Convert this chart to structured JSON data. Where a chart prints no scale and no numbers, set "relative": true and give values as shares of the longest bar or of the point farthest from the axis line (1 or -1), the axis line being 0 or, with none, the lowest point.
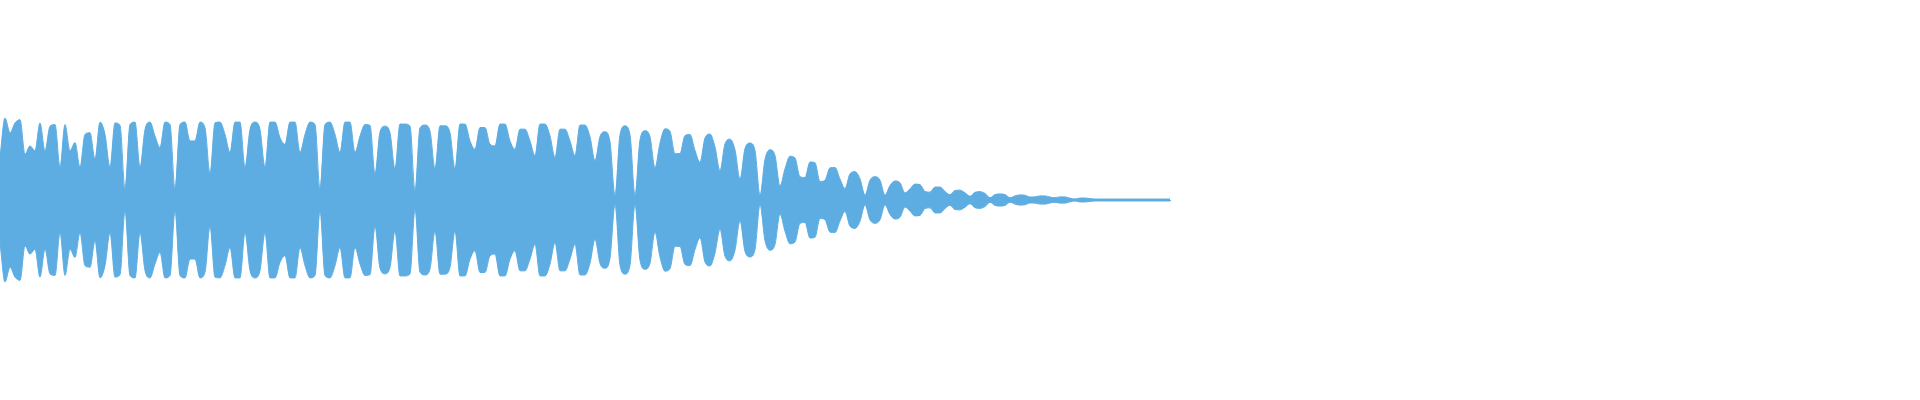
{
  "chart_data": {
    "type": "area",
    "relative": true,
    "categories": [
      null,
      null,
      null,
      null,
      null,
      null,
      null,
      null,
      null,
      null,
      null,
      null,
      null,
      null,
      null,
      null,
      null,
      null,
      null,
      null,
      null,
      null,
      null,
      null,
      null,
      null,
      null,
      null,
      null,
      null,
      null,
      null,
      null,
      null,
      null,
      null,
      null,
      null,
      null,
      null,
      null,
      null,
      null,
      null,
      null,
      null,
      null,
      null,
      null,
      null,
      null,
      null,
      null,
      null,
      null,
      null,
      null,
      null,
      null,
      null,
      null,
      null,
      null,
      null,
      null,
      null,
      null,
      null,
      null,
      null,
      null,
      null,
      null,
      null,
      null,
      null,
      null,
      null,
      null,
      null,
      null,
      null,
      null,
      null,
      null,
      null,
      null,
      null,
      null,
      null,
      null,
      null,
      null,
      null,
      null,
      null,
      null,
      null,
      null,
      null,
      null,
      null,
      null,
      null,
      null,
      null,
      null,
      null,
      null,
      null,
      null,
      null,
      null,
      null,
      null,
      null,
      null,
      null,
      null,
      null,
      null,
      null,
      null,
      null,
      null,
      null,
      null,
      null,
      null,
      null,
      null,
      null,
      null,
      null,
      null,
      null,
      null,
      null,
      null,
      null,
      null,
      null,
      null,
      null,
      null,
      null,
      null,
      null,
      null,
      null,
      null,
      null,
      null,
      null,
      null,
      null,
      null,
      null,
      null,
      null,
      null,
      null,
      null,
      null,
      null,
      null,
      null,
      null,
      null,
      null,
      null,
      null,
      null,
      null,
      null,
      null,
      null,
      null,
      null,
      null,
      null,
      null,
      null,
      null,
      null,
      null,
      null,
      null,
      null,
      null,
      null,
      null,
      null,
      null,
      null,
      null,
      null,
      null,
      null,
      null,
      null,
      null,
      null,
      null,
      null,
      null,
      null,
      null,
      null,
      null,
      null,
      null,
      null,
      null,
      null,
      null,
      null,
      null,
      null,
      null,
      null,
      null,
      null,
      null,
      null,
      null,
      null,
      null,
      null,
      null,
      null,
      null,
      null,
      null,
      null
    ],
    "series": [
      {
        "color": "#5dade2",
        "values": [
          0.52,
          1,
          0.82,
          0.94,
          0.98,
          0.56,
          0.66,
          0.6,
          0.94,
          0.6,
          0.9,
          0.92,
          0.4,
          0.92,
          0.6,
          0.7,
          0.4,
          0.8,
          0.82,
          0.5,
          0.95,
          0.8,
          0.4,
          0.94,
          0.91,
          0.132,
          0.92,
          0.95,
          0.4,
          0.86,
          0.95,
          0.78,
          0.64,
          0.95,
          0.92,
          0.132,
          0.92,
          0.95,
          0.72,
          0.72,
          0.95,
          0.88,
          0.32,
          0.94,
          0.95,
          0.8,
          0.58,
          0.95,
          0.95,
          0.4,
          0.86,
          0.95,
          0.86,
          0.4,
          0.95,
          0.95,
          0.76,
          0.68,
          0.95,
          0.95,
          0.58,
          0.8,
          0.95,
          0.92,
          0.132,
          0.92,
          0.95,
          0.8,
          0.58,
          0.95,
          0.95,
          0.58,
          0.78,
          0.92,
          0.91,
          0.32,
          0.83,
          0.9,
          0.82,
          0.38,
          0.926,
          0.926,
          0.9,
          0.112,
          0.88,
          0.914,
          0.84,
          0.38,
          0.904,
          0.904,
          0.82,
          0.38,
          0.926,
          0.926,
          0.72,
          0.62,
          0.884,
          0.884,
          0.68,
          0.66,
          0.926,
          0.926,
          0.72,
          0.62,
          0.864,
          0.864,
          0.72,
          0.54,
          0.926,
          0.926,
          0.78,
          0.52,
          0.864,
          0.864,
          0.72,
          0.54,
          0.914,
          0.914,
          0.77,
          0.48,
          0.774,
          0.832,
          0.708,
          0.056,
          0.794,
          0.904,
          0.794,
          0.056,
          0.734,
          0.844,
          0.77,
          0.394,
          0.696,
          0.868,
          0.836,
          0.564,
          0.566,
          0.786,
          0.8,
          0.604,
          0.46,
          0.756,
          0.804,
          0.646,
          0.358,
          0.684,
          0.742,
          0.612,
          0.254,
          0.628,
          0.694,
          0.604,
          0.056,
          0.496,
          0.612,
          0.542,
          0.17,
          0.382,
          0.534,
          0.512,
          0.284,
          0.274,
          0.464,
          0.454,
          0.226,
          0.24,
          0.392,
          0.396,
          0.256,
          0.14,
          0.32,
          0.346,
          0.258,
          0.06,
          0.242,
          0.284,
          0.242,
          0.06,
          0.176,
          0.232,
          0.21,
          0.086,
          0.136,
          0.194,
          0.188,
          0.104,
          0.096,
          0.158,
          0.158,
          0.104,
          0.064,
          0.116,
          0.12,
          0.088,
          0.046,
          0.094,
          0.102,
          0.08,
          0.028,
          0.066,
          0.074,
          0.066,
          0.028,
          0.05,
          0.062,
          0.058,
          0.036,
          0.038,
          0.05,
          0.05,
          0.036,
          0.028,
          0.038,
          0.038,
          0.022,
          0.012,
          0.024,
          0.024,
          0.018,
          0.012,
          0.012,
          0.012,
          0.012,
          0.012,
          0.012,
          0.012,
          0.012,
          0.012,
          0.012,
          0.012,
          0.012,
          0.012,
          0.012,
          0.012,
          0.012
        ]
      },
      {
        "color": "#5dade2",
        "values": [
          -0.52,
          -1,
          -0.82,
          -0.94,
          -0.98,
          -0.56,
          -0.66,
          -0.6,
          -0.94,
          -0.6,
          -0.9,
          -0.92,
          -0.4,
          -0.92,
          -0.6,
          -0.7,
          -0.4,
          -0.8,
          -0.82,
          -0.5,
          -0.95,
          -0.8,
          -0.4,
          -0.94,
          -0.91,
          -0.132,
          -0.92,
          -0.95,
          -0.4,
          -0.86,
          -0.95,
          -0.78,
          -0.64,
          -0.95,
          -0.92,
          -0.132,
          -0.92,
          -0.95,
          -0.72,
          -0.72,
          -0.95,
          -0.88,
          -0.32,
          -0.94,
          -0.95,
          -0.8,
          -0.58,
          -0.95,
          -0.95,
          -0.4,
          -0.86,
          -0.95,
          -0.86,
          -0.4,
          -0.95,
          -0.95,
          -0.76,
          -0.68,
          -0.95,
          -0.95,
          -0.58,
          -0.8,
          -0.95,
          -0.92,
          -0.132,
          -0.92,
          -0.95,
          -0.8,
          -0.58,
          -0.95,
          -0.95,
          -0.58,
          -0.78,
          -0.92,
          -0.91,
          -0.32,
          -0.83,
          -0.9,
          -0.82,
          -0.38,
          -0.926,
          -0.926,
          -0.9,
          -0.112,
          -0.88,
          -0.914,
          -0.84,
          -0.38,
          -0.904,
          -0.904,
          -0.82,
          -0.38,
          -0.926,
          -0.926,
          -0.72,
          -0.62,
          -0.884,
          -0.884,
          -0.68,
          -0.66,
          -0.926,
          -0.926,
          -0.72,
          -0.62,
          -0.864,
          -0.864,
          -0.72,
          -0.54,
          -0.926,
          -0.926,
          -0.78,
          -0.52,
          -0.864,
          -0.864,
          -0.72,
          -0.54,
          -0.914,
          -0.914,
          -0.77,
          -0.48,
          -0.774,
          -0.832,
          -0.708,
          -0.056,
          -0.794,
          -0.904,
          -0.794,
          -0.056,
          -0.734,
          -0.844,
          -0.77,
          -0.394,
          -0.696,
          -0.868,
          -0.836,
          -0.564,
          -0.566,
          -0.786,
          -0.8,
          -0.604,
          -0.46,
          -0.756,
          -0.804,
          -0.646,
          -0.358,
          -0.684,
          -0.742,
          -0.612,
          -0.254,
          -0.628,
          -0.694,
          -0.604,
          -0.056,
          -0.496,
          -0.612,
          -0.542,
          -0.17,
          -0.382,
          -0.534,
          -0.512,
          -0.284,
          -0.274,
          -0.464,
          -0.454,
          -0.226,
          -0.24,
          -0.392,
          -0.396,
          -0.256,
          -0.14,
          -0.32,
          -0.346,
          -0.258,
          -0.06,
          -0.242,
          -0.284,
          -0.242,
          -0.06,
          -0.176,
          -0.232,
          -0.21,
          -0.086,
          -0.136,
          -0.194,
          -0.188,
          -0.104,
          -0.096,
          -0.158,
          -0.158,
          -0.104,
          -0.064,
          -0.116,
          -0.12,
          -0.088,
          -0.046,
          -0.094,
          -0.102,
          -0.08,
          -0.028,
          -0.066,
          -0.074,
          -0.066,
          -0.028,
          -0.05,
          -0.062,
          -0.058,
          -0.036,
          -0.038,
          -0.05,
          -0.05,
          -0.036,
          -0.028,
          -0.038,
          -0.038,
          -0.022,
          -0.012,
          -0.024,
          -0.024,
          -0.018,
          -0.012,
          -0.012,
          -0.012,
          -0.012,
          -0.012,
          -0.012,
          -0.012,
          -0.012,
          -0.012,
          -0.012,
          -0.012,
          -0.012,
          -0.012,
          -0.012,
          -0.012,
          -0.012
        ]
      }
    ]
  }
}
